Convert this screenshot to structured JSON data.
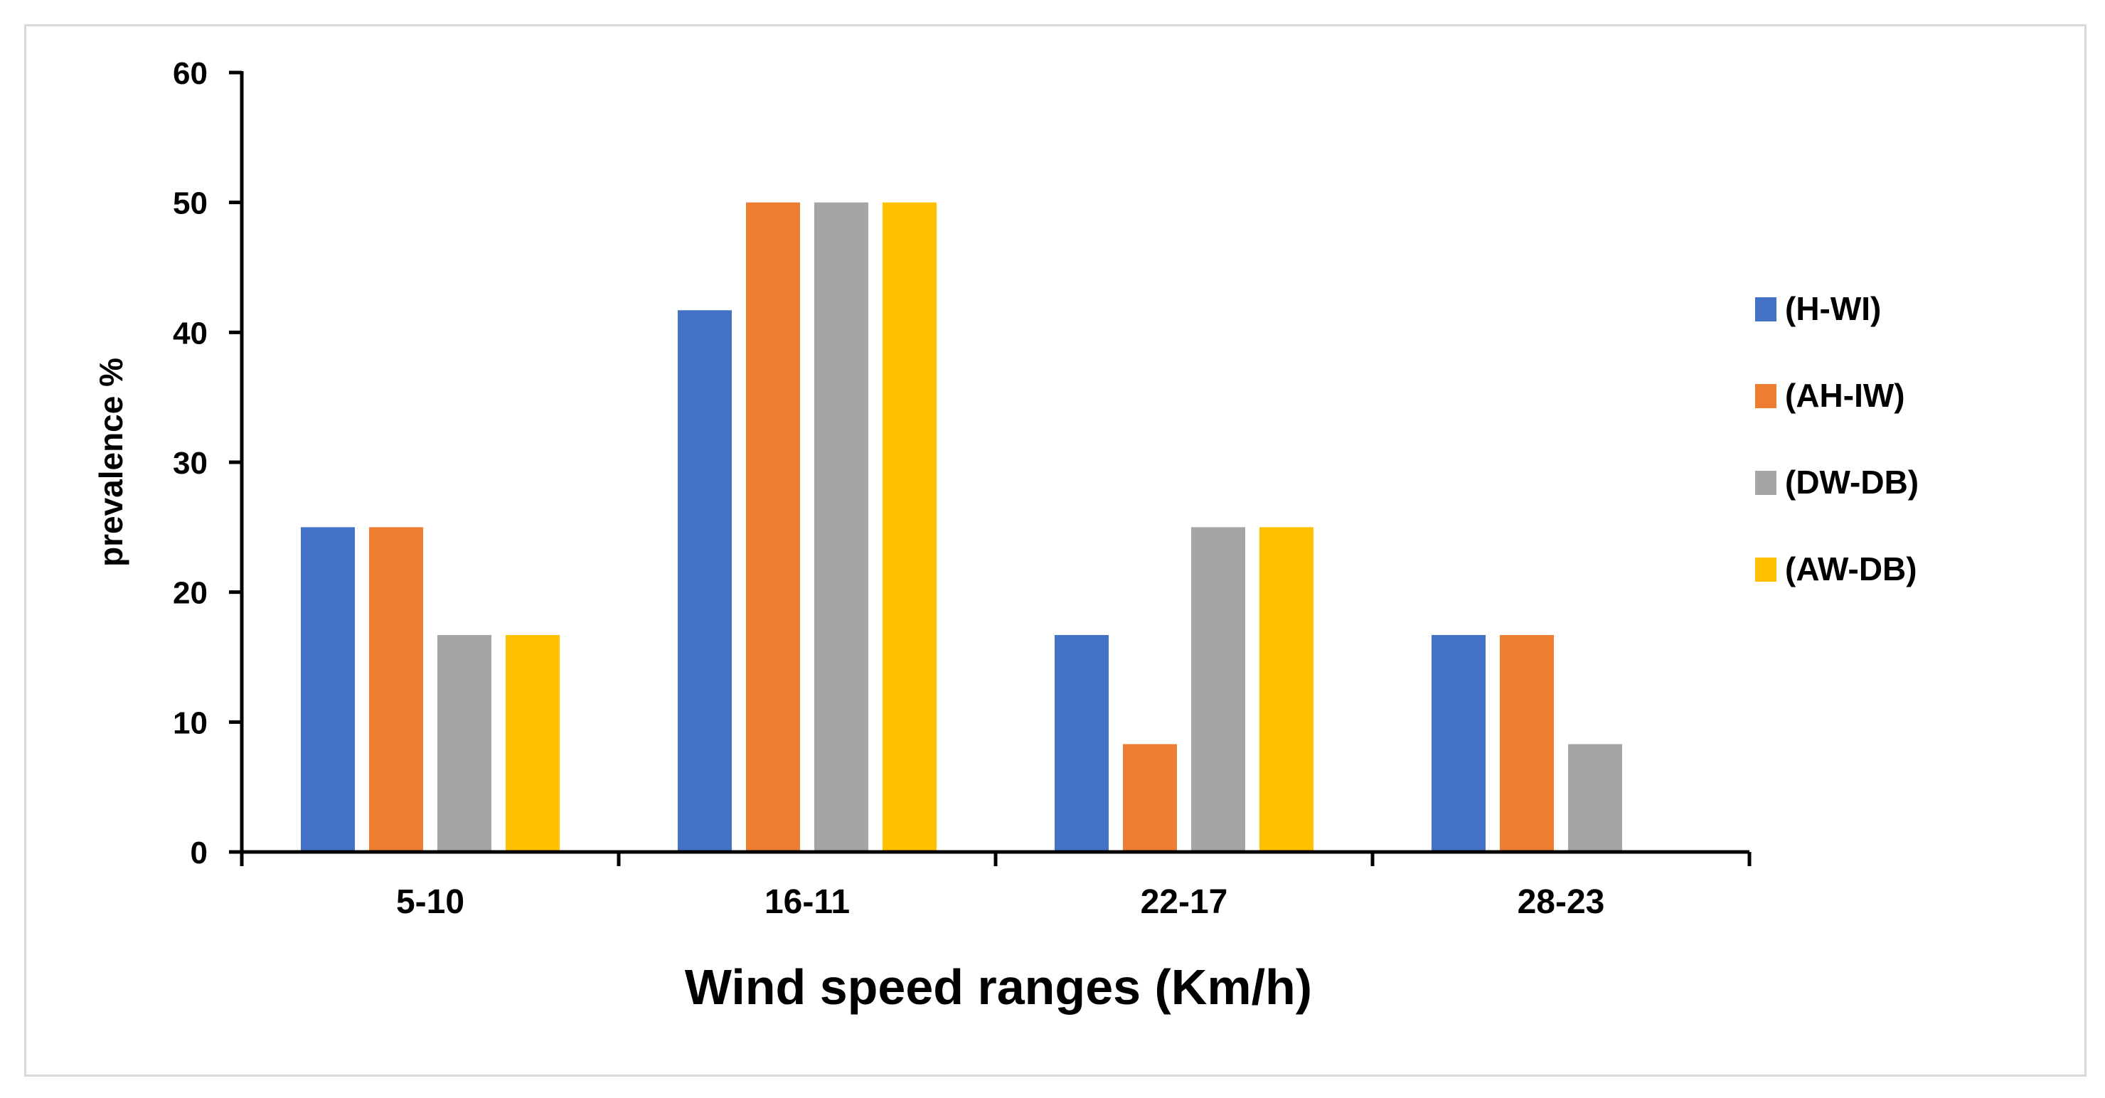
{
  "chart_data": {
    "type": "bar",
    "title": "",
    "xlabel": "Wind speed ranges (Km/h)",
    "ylabel": "prevalence  %",
    "ylim": [
      0,
      60
    ],
    "yticks": [
      0,
      10,
      20,
      30,
      40,
      50,
      60
    ],
    "grid": false,
    "legend_position": "right",
    "categories": [
      "5-10",
      "16-11",
      "22-17",
      "28-23"
    ],
    "series": [
      {
        "name": "(H-WI)",
        "color": "#4472c4",
        "values": [
          25,
          41.7,
          16.7,
          16.7
        ]
      },
      {
        "name": "(AH-IW)",
        "color": "#ed7d31",
        "values": [
          25,
          50,
          8.3,
          16.7
        ]
      },
      {
        "name": "(DW-DB)",
        "color": "#a5a5a5",
        "values": [
          16.7,
          50,
          25,
          8.3
        ]
      },
      {
        "name": "(AW-DB)",
        "color": "#ffc000",
        "values": [
          16.7,
          50,
          25,
          0
        ]
      }
    ]
  }
}
